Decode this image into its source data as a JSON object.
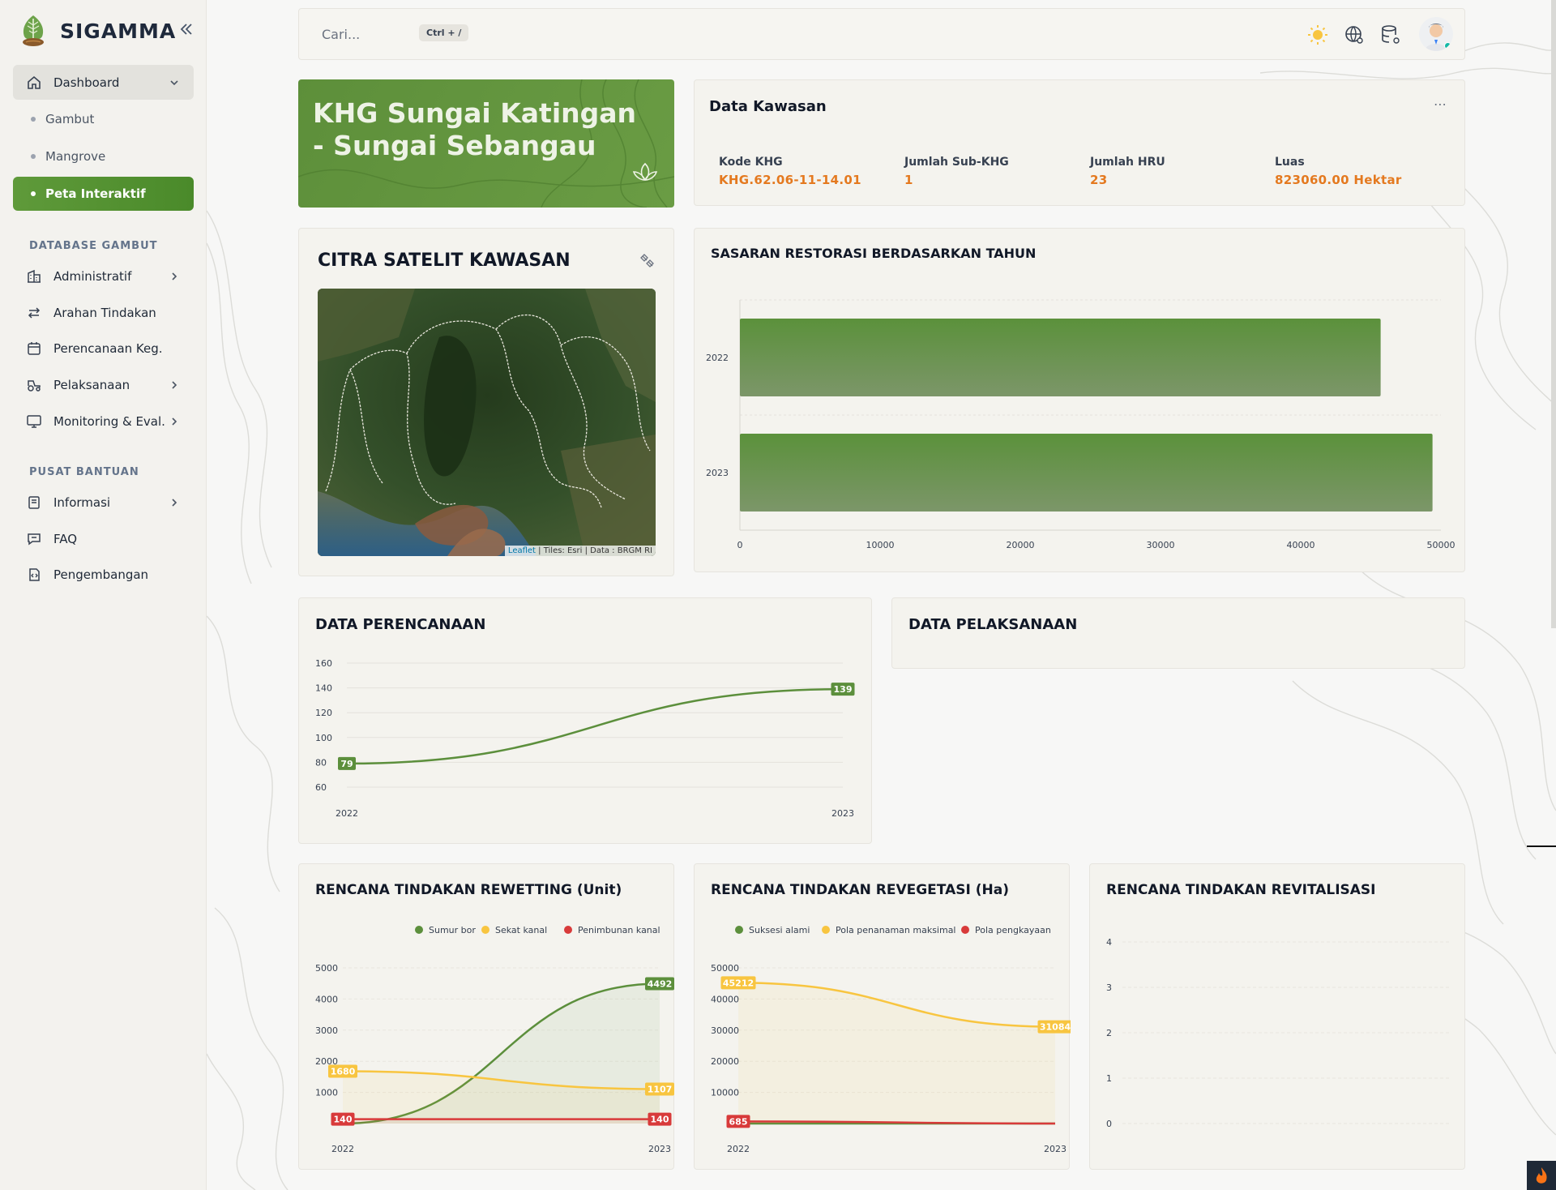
{
  "app": {
    "name": "SIGAMMA",
    "logo_icon": "leaf-tree-logo-icon",
    "collapse_icon": "double-chevron-left-icon"
  },
  "sidebar": {
    "dashboard": {
      "label": "Dashboard",
      "icon": "home-icon"
    },
    "sub_items": [
      {
        "label": "Gambut"
      },
      {
        "label": "Mangrove"
      },
      {
        "label": "Peta Interaktif"
      }
    ],
    "section_database": "DATABASE GAMBUT",
    "database_items": [
      {
        "label": "Administratif",
        "icon": "building-icon",
        "has_children": true
      },
      {
        "label": "Arahan Tindakan",
        "icon": "arrows-swap-icon",
        "has_children": false
      },
      {
        "label": "Perencanaan Keg.",
        "icon": "calendar-icon",
        "has_children": false
      },
      {
        "label": "Pelaksanaan",
        "icon": "tractor-icon",
        "has_children": true
      },
      {
        "label": "Monitoring & Eval.",
        "icon": "monitor-icon",
        "has_children": true
      }
    ],
    "section_help": "PUSAT BANTUAN",
    "help_items": [
      {
        "label": "Informasi",
        "icon": "book-icon",
        "has_children": true
      },
      {
        "label": "FAQ",
        "icon": "chat-question-icon",
        "has_children": false
      },
      {
        "label": "Pengembangan",
        "icon": "code-file-icon",
        "has_children": false
      }
    ]
  },
  "topbar": {
    "search_placeholder": "Cari...",
    "shortcut": "Ctrl + /",
    "icons": [
      "sun-icon",
      "globe-settings-icon",
      "database-settings-icon"
    ],
    "avatar": "user-avatar"
  },
  "hero": {
    "title": "KHG Sungai Katingan - Sungai Sebangau",
    "icon": "lotus-icon"
  },
  "kawasan": {
    "title": "Data Kawasan",
    "fields": [
      {
        "label": "Kode KHG",
        "value": "KHG.62.06-11-14.01"
      },
      {
        "label": "Jumlah Sub-KHG",
        "value": "1"
      },
      {
        "label": "Jumlah HRU",
        "value": "23"
      },
      {
        "label": "Luas",
        "value": "823060.00 Hektar"
      }
    ]
  },
  "citra": {
    "title": "CITRA SATELIT KAWASAN",
    "icon": "satellite-icon",
    "attribution_link": "Leaflet",
    "attribution_rest": " | Tiles: Esri | Data : BRGM RI"
  },
  "colors": {
    "brand_green": "#5f9a3a",
    "accent_orange": "#e4791f",
    "series_green": "#5c8f3c",
    "series_yellow": "#f8c540",
    "series_red": "#d83a3a"
  },
  "chart_data": [
    {
      "id": "sasaran",
      "type": "bar",
      "orientation": "horizontal",
      "title": "SASARAN RESTORASI BERDASARKAN TAHUN",
      "categories": [
        "2022",
        "2023"
      ],
      "values": [
        45700,
        49400
      ],
      "xlim": [
        0,
        50000
      ],
      "xticks": [
        0,
        10000,
        20000,
        30000,
        40000,
        50000
      ]
    },
    {
      "id": "perencanaan",
      "type": "line",
      "title": "DATA PERENCANAAN",
      "x": [
        "2022",
        "2023"
      ],
      "series": [
        {
          "name": "Perencanaan",
          "values": [
            79,
            139
          ]
        }
      ],
      "ylim": [
        60,
        160
      ],
      "yticks": [
        60,
        80,
        100,
        120,
        140,
        160
      ]
    },
    {
      "id": "pelaksanaan",
      "type": "line",
      "title": "DATA PELAKSANAAN",
      "series": []
    },
    {
      "id": "rewetting",
      "type": "area",
      "title": "RENCANA TINDAKAN REWETTING (Unit)",
      "x": [
        "2022",
        "2023"
      ],
      "series": [
        {
          "name": "Sumur bor",
          "values": [
            0,
            4492
          ],
          "labels": [
            "",
            "4492"
          ]
        },
        {
          "name": "Sekat kanal",
          "values": [
            1680,
            1107
          ],
          "labels": [
            "1680",
            "1107"
          ]
        },
        {
          "name": "Penimbunan kanal",
          "values": [
            140,
            140
          ],
          "labels": [
            "140",
            "140"
          ]
        }
      ],
      "ylim": [
        0,
        5000
      ],
      "yticks": [
        1000,
        2000,
        3000,
        4000,
        5000
      ]
    },
    {
      "id": "revegetasi",
      "type": "area",
      "title": "RENCANA TINDAKAN REVEGETASI (Ha)",
      "x": [
        "2022",
        "2023"
      ],
      "series": [
        {
          "name": "Suksesi alami",
          "values": [
            0,
            0
          ],
          "labels": [
            "",
            ""
          ]
        },
        {
          "name": "Pola penanaman maksimal",
          "values": [
            45212,
            31084
          ],
          "labels": [
            "45212",
            "31084"
          ]
        },
        {
          "name": "Pola pengkayaan",
          "values": [
            685,
            0
          ],
          "labels": [
            "685",
            ""
          ]
        }
      ],
      "ylim": [
        0,
        50000
      ],
      "yticks": [
        10000,
        20000,
        30000,
        40000,
        50000
      ]
    },
    {
      "id": "revitalisasi",
      "type": "line",
      "title": "RENCANA TINDAKAN REVITALISASI",
      "series": [],
      "ylim": [
        0,
        4
      ],
      "yticks": [
        0,
        1,
        2,
        3,
        4
      ]
    }
  ]
}
